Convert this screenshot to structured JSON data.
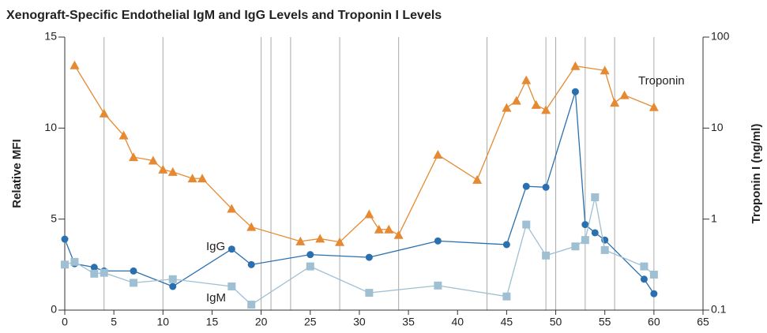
{
  "chart_data": {
    "type": "line",
    "title": "Xenograft-Specific Endothelial IgM and IgG Levels and Troponin I Levels",
    "ylabel": "Relative MFI",
    "y2label": "Troponin I (ng/ml)",
    "xlim": [
      0,
      65
    ],
    "xticks": [
      0,
      5,
      10,
      15,
      20,
      25,
      30,
      35,
      40,
      45,
      50,
      55,
      60,
      65
    ],
    "ylim": [
      0,
      15
    ],
    "yticks": [
      0,
      5,
      10,
      15
    ],
    "y2lim": [
      0.1,
      100
    ],
    "y2ticks": [
      0.1,
      1,
      10,
      100
    ],
    "y2log": true,
    "vlines": [
      4,
      10,
      20,
      21,
      23,
      28,
      34,
      43,
      49,
      50,
      53,
      56,
      60
    ],
    "series": [
      {
        "name": "IgG",
        "color": "#2a6fae",
        "marker": "circle",
        "x": [
          0,
          1,
          3,
          4,
          7,
          11,
          17,
          19,
          25,
          31,
          38,
          45,
          47,
          49,
          52,
          53,
          54,
          55,
          59,
          60
        ],
        "values": [
          3.9,
          2.55,
          2.35,
          2.15,
          2.15,
          1.3,
          3.35,
          2.5,
          3.05,
          2.9,
          3.8,
          3.6,
          6.8,
          6.75,
          12.0,
          4.7,
          4.25,
          3.85,
          1.7,
          0.9
        ]
      },
      {
        "name": "IgM",
        "color": "#9fbfd3",
        "marker": "square",
        "x": [
          0,
          1,
          3,
          4,
          7,
          11,
          17,
          19,
          25,
          31,
          38,
          45,
          47,
          49,
          52,
          53,
          54,
          55,
          59,
          60
        ],
        "values": [
          2.5,
          2.65,
          2.0,
          2.05,
          1.5,
          1.7,
          1.3,
          0.3,
          2.4,
          0.95,
          1.35,
          0.75,
          4.7,
          3.0,
          3.5,
          3.85,
          6.2,
          3.3,
          2.4,
          1.95
        ]
      },
      {
        "name": "Troponin",
        "color": "#e58a32",
        "marker": "triangle",
        "axis": "y2",
        "x": [
          1,
          4,
          6,
          7,
          9,
          10,
          11,
          13,
          14,
          17,
          19,
          24,
          26,
          28,
          31,
          32,
          33,
          34,
          38,
          42,
          45,
          46,
          47,
          48,
          49,
          52,
          55,
          56,
          57,
          60
        ],
        "values": [
          49,
          14.5,
          8.3,
          4.8,
          4.4,
          3.5,
          3.3,
          2.8,
          2.8,
          1.3,
          0.82,
          0.57,
          0.61,
          0.56,
          1.13,
          0.77,
          0.77,
          0.67,
          5.1,
          2.7,
          16.7,
          20,
          33.6,
          18,
          15.8,
          48,
          43,
          19,
          23,
          17
        ]
      }
    ]
  }
}
